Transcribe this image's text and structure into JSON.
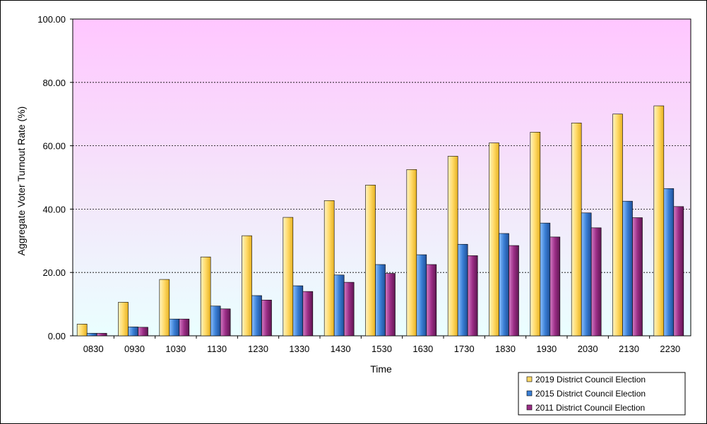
{
  "chart_data": {
    "type": "bar",
    "title": "",
    "xlabel": "Time",
    "ylabel": "Aggregate Voter Turnout Rate (%)",
    "ylim": [
      0,
      100
    ],
    "yticks": [
      "0.00",
      "20.00",
      "40.00",
      "60.00",
      "80.00",
      "100.00"
    ],
    "grid": true,
    "legend_position": "bottom-right",
    "categories": [
      "0830",
      "0930",
      "1030",
      "1130",
      "1230",
      "1330",
      "1430",
      "1530",
      "1630",
      "1730",
      "1830",
      "1930",
      "2030",
      "2130",
      "2230"
    ],
    "series": [
      {
        "name": "2019 District Council Election",
        "color": "#FFD966",
        "values": [
          3.7,
          10.6,
          17.8,
          24.9,
          31.6,
          37.4,
          42.7,
          47.6,
          52.5,
          56.7,
          60.9,
          64.3,
          67.2,
          70.0,
          72.6
        ]
      },
      {
        "name": "2015 District Council Election",
        "color": "#3A7FD5",
        "values": [
          0.8,
          2.8,
          5.3,
          9.4,
          12.7,
          15.8,
          19.2,
          22.5,
          25.6,
          28.9,
          32.3,
          35.6,
          38.8,
          42.5,
          46.5
        ]
      },
      {
        "name": "2011 District Council Election",
        "color": "#9B2D86",
        "values": [
          0.8,
          2.7,
          5.3,
          8.5,
          11.3,
          14.0,
          16.9,
          19.7,
          22.5,
          25.3,
          28.5,
          31.2,
          34.1,
          37.3,
          40.8
        ]
      }
    ]
  }
}
